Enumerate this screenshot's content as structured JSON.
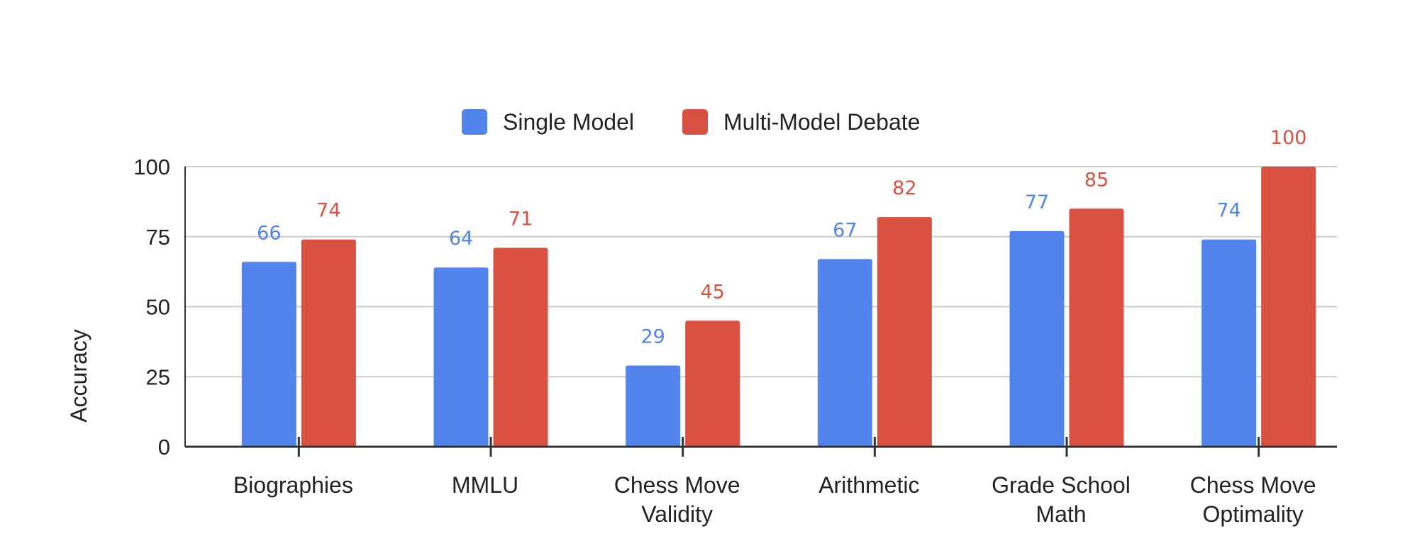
{
  "chart_data": {
    "type": "bar",
    "title": "",
    "xlabel": "",
    "ylabel": "Accuracy",
    "ylim": [
      0,
      100
    ],
    "yticks": [
      0,
      25,
      50,
      75,
      100
    ],
    "grid": true,
    "legend_position": "top-center",
    "categories": [
      [
        "Biographies"
      ],
      [
        "MMLU"
      ],
      [
        "Chess Move",
        "Validity"
      ],
      [
        "Arithmetic"
      ],
      [
        "Grade School",
        "Math"
      ],
      [
        "Chess Move",
        "Optimality"
      ]
    ],
    "series": [
      {
        "name": "Single Model",
        "color": "#5384ED",
        "values": [
          66,
          64,
          29,
          67,
          77,
          74
        ]
      },
      {
        "name": "Multi-Model Debate",
        "color": "#D85141",
        "values": [
          74,
          71,
          45,
          82,
          85,
          100
        ]
      }
    ]
  }
}
